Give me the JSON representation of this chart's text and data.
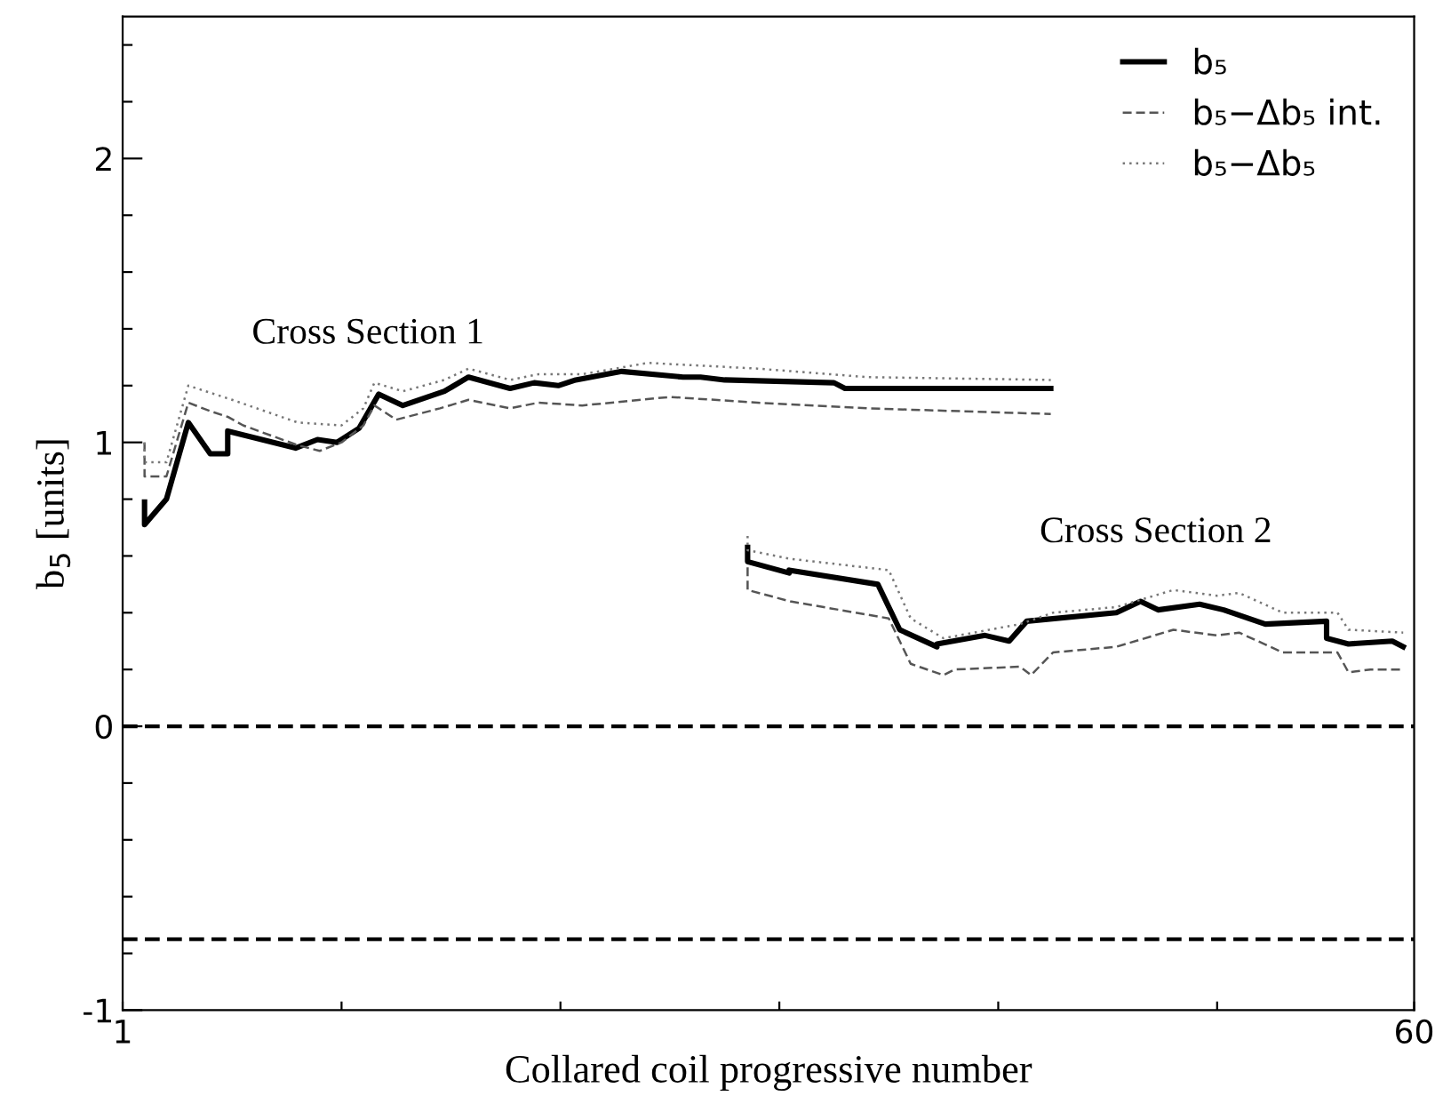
{
  "chart_data": {
    "type": "line",
    "xlabel": "Collared coil progressive number",
    "ylabel": "b$_{5}$ [units]",
    "xlim": [
      1,
      60
    ],
    "xticks": [
      1,
      {
        "value": 11,
        "label": null
      },
      {
        "value": 21,
        "label": null
      },
      {
        "value": 31,
        "label": null
      },
      {
        "value": 41,
        "label": null
      },
      {
        "value": 51,
        "label": null
      },
      60
    ],
    "ylim": [
      -1,
      2.5
    ],
    "yticks": [
      -1,
      {
        "value": -0.8,
        "label": null
      },
      {
        "value": -0.6,
        "label": null
      },
      {
        "value": -0.4,
        "label": null
      },
      {
        "value": -0.2,
        "label": null
      },
      0,
      {
        "value": 0.2,
        "label": null
      },
      {
        "value": 0.4,
        "label": null
      },
      {
        "value": 0.6,
        "label": null
      },
      {
        "value": 0.8,
        "label": null
      },
      1,
      {
        "value": 1.2,
        "label": null
      },
      {
        "value": 1.4,
        "label": null
      },
      {
        "value": 1.6,
        "label": null
      },
      {
        "value": 1.8,
        "label": null
      },
      2,
      {
        "value": 2.2,
        "label": null
      },
      {
        "value": 2.4,
        "label": null
      }
    ],
    "grid": false,
    "legend": "top right",
    "marker": "none",
    "series": [
      {
        "name": "b₅",
        "color": "#000000",
        "line_style": "solid",
        "x": [
          2,
          2,
          3,
          4,
          5,
          5.8,
          5.8,
          8.9,
          9.9,
          10.8,
          11.8,
          12.7,
          13.8,
          15.7,
          16.8,
          18.7,
          19.8,
          20.9,
          21.7,
          23.8,
          26.6,
          27.4,
          28.5,
          33.5,
          34,
          43.4
        ],
        "values": [
          0.79,
          0.71,
          0.8,
          1.07,
          0.96,
          0.96,
          1.04,
          0.98,
          1.01,
          1.0,
          1.05,
          1.17,
          1.13,
          1.18,
          1.23,
          1.19,
          1.21,
          1.2,
          1.22,
          1.25,
          1.23,
          1.23,
          1.22,
          1.21,
          1.19,
          1.19
        ]
      },
      {
        "color": "#000000",
        "line_style": "solid",
        "x": [
          29.55,
          29.55,
          31.45,
          31.45,
          35.5,
          36.5,
          38.2,
          38.2,
          40.4,
          41.5,
          42.3,
          46.4,
          47.5,
          48.3,
          50.2,
          51.3,
          53.2,
          56,
          56,
          57,
          59,
          59.5
        ],
        "values": [
          0.63,
          0.58,
          0.54,
          0.55,
          0.5,
          0.34,
          0.28,
          0.29,
          0.32,
          0.3,
          0.37,
          0.4,
          0.44,
          0.41,
          0.43,
          0.41,
          0.36,
          0.37,
          0.31,
          0.29,
          0.3,
          0.28
        ]
      },
      {
        "name": "b₅−Δb₅ int.",
        "color": "#555555",
        "line_style": "dashed",
        "x": [
          2,
          2,
          3,
          4,
          5,
          5.8,
          6.5,
          9,
          10,
          11,
          12,
          12.5,
          13.5,
          15.5,
          16.8,
          18.7,
          20,
          22,
          26,
          30,
          35,
          43.4
        ],
        "values": [
          1.0,
          0.88,
          0.88,
          1.14,
          1.11,
          1.09,
          1.06,
          0.99,
          0.97,
          1.0,
          1.06,
          1.13,
          1.08,
          1.12,
          1.15,
          1.12,
          1.14,
          1.13,
          1.16,
          1.14,
          1.12,
          1.1
        ]
      },
      {
        "color": "#555555",
        "line_style": "dashed",
        "x": [
          29.55,
          29.55,
          31.5,
          36,
          37,
          38.5,
          39,
          42,
          42.5,
          43.5,
          46.4,
          49,
          51,
          52,
          54,
          56.5,
          57,
          58,
          59.5
        ],
        "values": [
          0.56,
          0.48,
          0.44,
          0.38,
          0.22,
          0.18,
          0.2,
          0.21,
          0.18,
          0.26,
          0.28,
          0.34,
          0.32,
          0.33,
          0.26,
          0.26,
          0.19,
          0.2,
          0.2
        ]
      },
      {
        "name": "b₅−Δb₅",
        "color": "#777777",
        "line_style": "dotted",
        "x": [
          2,
          2,
          3,
          4,
          6,
          9,
          11,
          12,
          12.5,
          13.8,
          15.7,
          16.8,
          18.7,
          20,
          22,
          25,
          30,
          35,
          43.4
        ],
        "values": [
          1.0,
          0.93,
          0.93,
          1.2,
          1.15,
          1.07,
          1.06,
          1.12,
          1.21,
          1.18,
          1.22,
          1.26,
          1.22,
          1.24,
          1.24,
          1.28,
          1.26,
          1.23,
          1.22
        ]
      },
      {
        "color": "#777777",
        "line_style": "dotted",
        "x": [
          29.55,
          29.55,
          31.5,
          36,
          37,
          38.5,
          42,
          43.5,
          46.4,
          49,
          51,
          52,
          54,
          56.5,
          57,
          59.5
        ],
        "values": [
          0.67,
          0.62,
          0.59,
          0.55,
          0.38,
          0.31,
          0.36,
          0.4,
          0.42,
          0.48,
          0.46,
          0.47,
          0.4,
          0.4,
          0.34,
          0.33
        ]
      }
    ],
    "ref_lines": [
      {
        "axis": "y",
        "value": 0,
        "color": "#000000",
        "line_style": "dashed"
      },
      {
        "axis": "y",
        "value": -0.75,
        "color": "#000000",
        "line_style": "dashed"
      }
    ],
    "annotations": [
      "Cross Section 1",
      "Cross Section 2"
    ]
  }
}
